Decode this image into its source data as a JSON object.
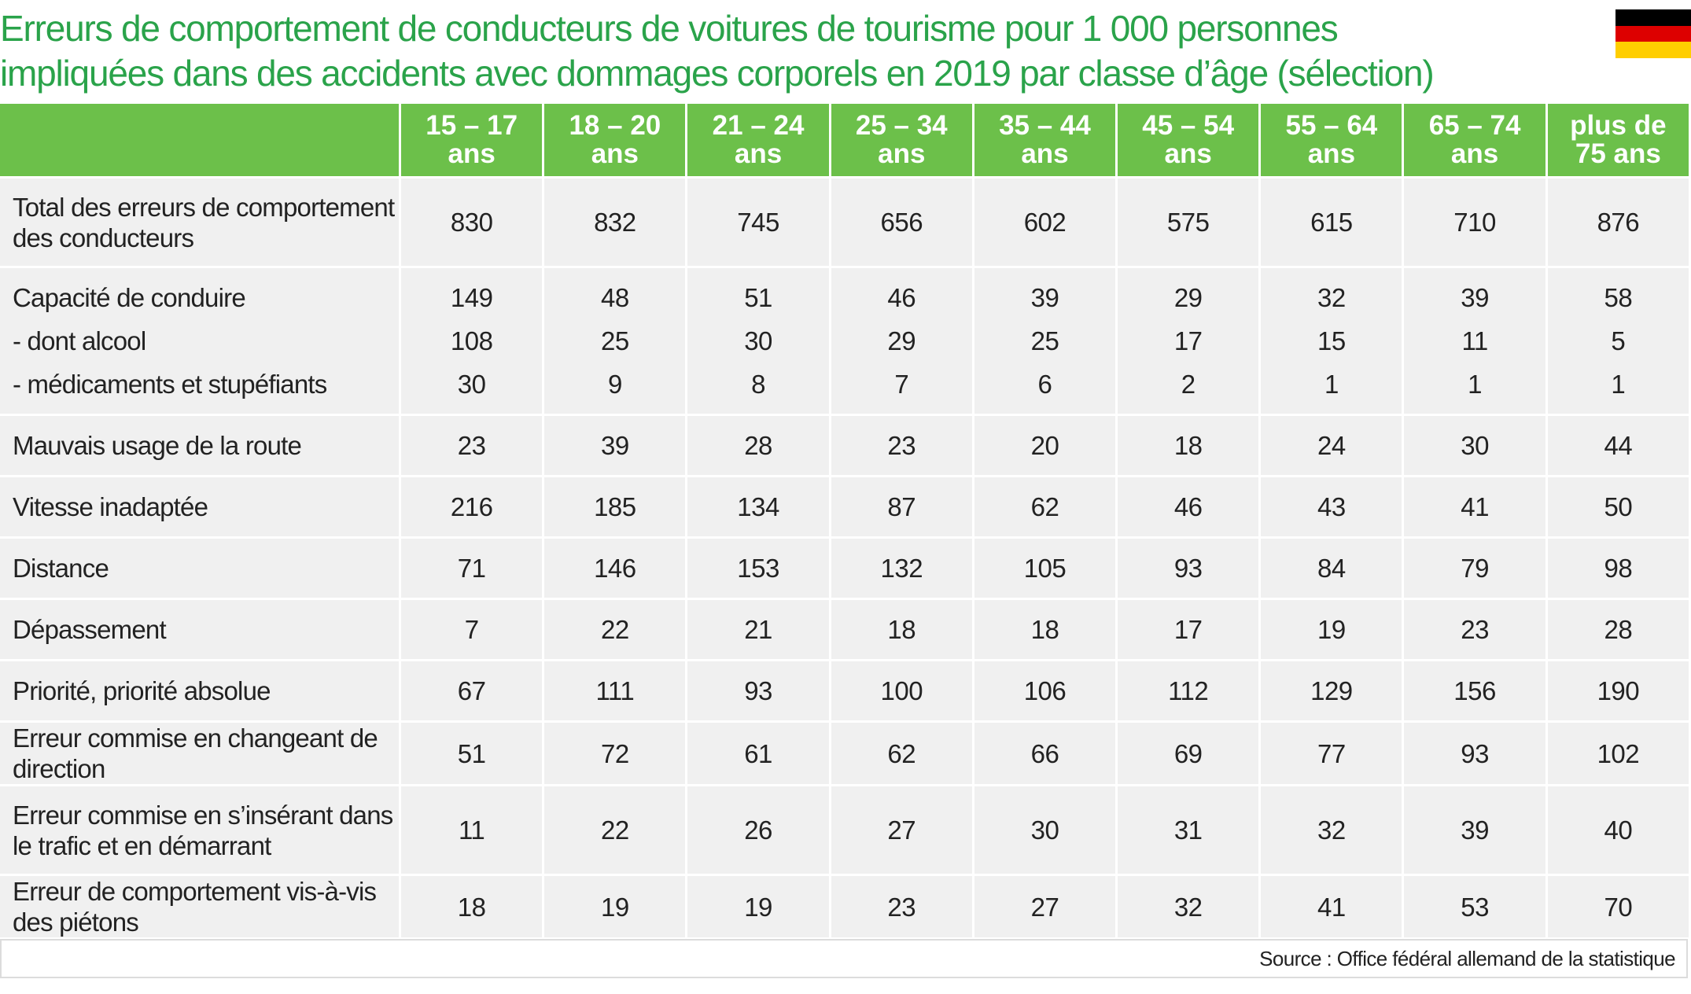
{
  "title_lines": [
    "Erreurs de comportement de conducteurs de voitures de tourisme pour 1 000 personnes",
    "impliquées dans des accidents avec dommages corporels en 2019 par classe d’âge (sélection)"
  ],
  "flag_colors": [
    "#000000",
    "#dd0000",
    "#ffce00"
  ],
  "colors": {
    "title": "#2aa34a",
    "header_bg": "#6cc04a",
    "cell_bg": "#f0f0f0"
  },
  "chart_data": {
    "type": "table",
    "columns": [
      [
        "15 – 17",
        "ans"
      ],
      [
        "18 – 20",
        "ans"
      ],
      [
        "21 – 24",
        "ans"
      ],
      [
        "25 – 34",
        "ans"
      ],
      [
        "35 – 44",
        "ans"
      ],
      [
        "45 – 54",
        "ans"
      ],
      [
        "55 – 64",
        "ans"
      ],
      [
        "65 – 74",
        "ans"
      ],
      [
        "plus de",
        "75 ans"
      ]
    ],
    "rows": [
      {
        "labels": [
          "Total des erreurs de comportement",
          "des conducteurs"
        ],
        "lines": [
          [
            "830",
            "832",
            "745",
            "656",
            "602",
            "575",
            "615",
            "710",
            "876"
          ]
        ],
        "height": 114
      },
      {
        "labels": [
          "Capacité de conduire",
          "- dont alcool",
          "- médicaments et stupéfiants"
        ],
        "lines": [
          [
            "149",
            "48",
            "51",
            "46",
            "39",
            "29",
            "32",
            "39",
            "58"
          ],
          [
            "108",
            "25",
            "30",
            "29",
            "25",
            "17",
            "15",
            "11",
            "5"
          ],
          [
            "30",
            "9",
            "8",
            "7",
            "6",
            "2",
            "1",
            "1",
            "1"
          ]
        ],
        "height": 188
      },
      {
        "labels": [
          "Mauvais usage de la route"
        ],
        "lines": [
          [
            "23",
            "39",
            "28",
            "23",
            "20",
            "18",
            "24",
            "30",
            "44"
          ]
        ],
        "height": 78
      },
      {
        "labels": [
          "Vitesse inadaptée"
        ],
        "lines": [
          [
            "216",
            "185",
            "134",
            "87",
            "62",
            "46",
            "43",
            "41",
            "50"
          ]
        ],
        "height": 78
      },
      {
        "labels": [
          "Distance"
        ],
        "lines": [
          [
            "71",
            "146",
            "153",
            "132",
            "105",
            "93",
            "84",
            "79",
            "98"
          ]
        ],
        "height": 78
      },
      {
        "labels": [
          "Dépassement"
        ],
        "lines": [
          [
            "7",
            "22",
            "21",
            "18",
            "18",
            "17",
            "19",
            "23",
            "28"
          ]
        ],
        "height": 78
      },
      {
        "labels": [
          "Priorité, priorité absolue"
        ],
        "lines": [
          [
            "67",
            "111",
            "93",
            "100",
            "106",
            "112",
            "129",
            "156",
            "190"
          ]
        ],
        "height": 78
      },
      {
        "labels": [
          "Erreur commise en changeant de direction"
        ],
        "lines": [
          [
            "51",
            "72",
            "61",
            "62",
            "66",
            "69",
            "77",
            "93",
            "102"
          ]
        ],
        "height": 78
      },
      {
        "labels": [
          "Erreur commise en s’insérant dans",
          "le trafic et en démarrant"
        ],
        "lines": [
          [
            "11",
            "22",
            "26",
            "27",
            "30",
            "31",
            "32",
            "39",
            "40"
          ]
        ],
        "height": 114
      },
      {
        "labels": [
          "Erreur de comportement vis-à-vis des piétons"
        ],
        "lines": [
          [
            "18",
            "19",
            "19",
            "23",
            "27",
            "32",
            "41",
            "53",
            "70"
          ]
        ],
        "height": 78
      }
    ]
  },
  "source": "Source : Office fédéral allemand de la statistique"
}
